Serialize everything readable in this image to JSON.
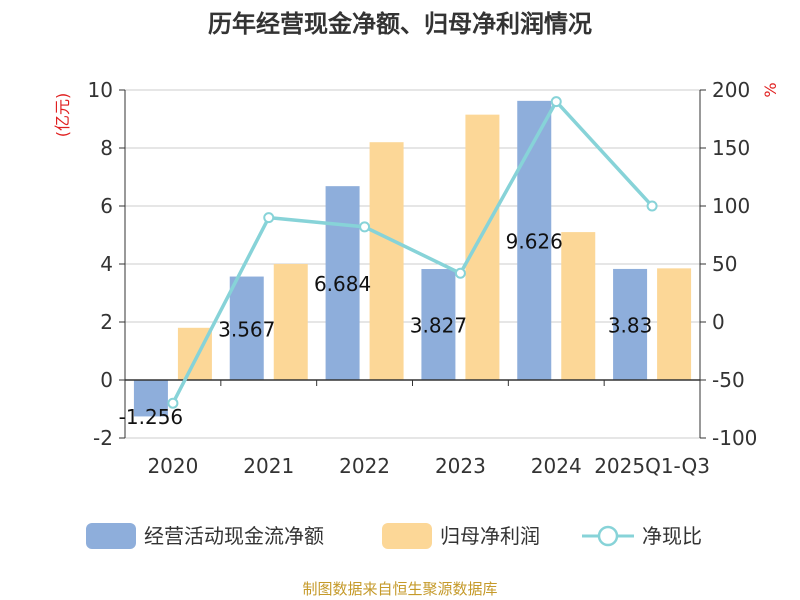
{
  "chart_data": {
    "type": "bar",
    "title": "历年经营现金净额、归母净利润情况",
    "categories": [
      "2020",
      "2021",
      "2022",
      "2023",
      "2024",
      "2025Q1-Q3"
    ],
    "series": [
      {
        "name": "经营活动现金流净额",
        "type": "bar",
        "axis": "left",
        "color": "#8eaedb",
        "values": [
          -1.256,
          3.567,
          6.684,
          3.827,
          9.626,
          3.83
        ],
        "labels": [
          "-1.256",
          "3.567",
          "6.684",
          "3.827",
          "9.626",
          "3.83"
        ]
      },
      {
        "name": "归母净利润",
        "type": "bar",
        "axis": "left",
        "color": "#fcd797",
        "values": [
          1.8,
          4.0,
          8.2,
          9.15,
          5.1,
          3.85
        ]
      },
      {
        "name": "净现比",
        "type": "line",
        "axis": "right",
        "color": "#87d3d8",
        "values": [
          -70,
          90,
          82,
          42,
          190,
          100
        ]
      }
    ],
    "y_left": {
      "label": "(亿元)",
      "min": -2,
      "max": 10,
      "ticks": [
        "-2",
        "0",
        "2",
        "4",
        "6",
        "8",
        "10"
      ]
    },
    "y_right": {
      "label": "%",
      "min": -100,
      "max": 200,
      "ticks": [
        "-100",
        "-50",
        "0",
        "50",
        "100",
        "150",
        "200"
      ]
    },
    "grid": true,
    "legend_position": "bottom"
  },
  "source": "制图数据来自恒生聚源数据库"
}
